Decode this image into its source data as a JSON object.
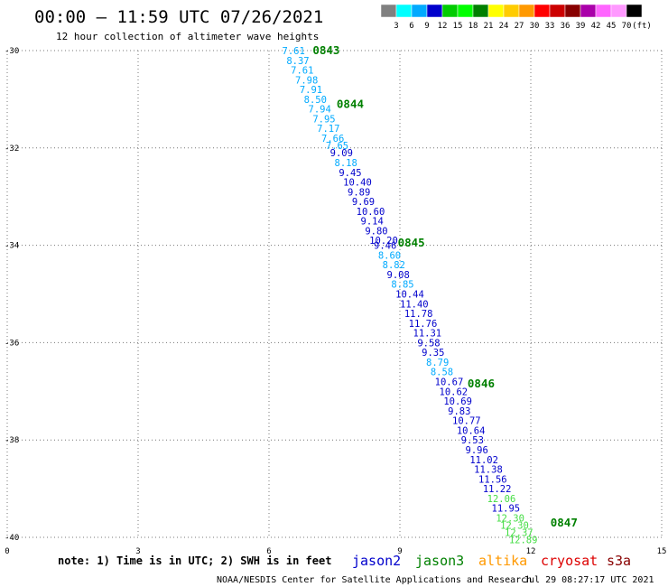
{
  "chart_data": {
    "type": "scatter",
    "title": "00:00 – 11:59 UTC 07/26/2021",
    "subtitle": "12 hour collection of altimeter wave heights",
    "xlim": [
      0,
      15
    ],
    "ylim": [
      -40,
      -30
    ],
    "x_ticks": [
      "0",
      "3",
      "6",
      "9",
      "12",
      "15"
    ],
    "y_ticks": [
      "-30",
      "-32",
      "-34",
      "-36",
      "-38",
      "-40"
    ],
    "grid": true,
    "colorbar": {
      "labels": [
        "3",
        "6",
        "9",
        "12",
        "15",
        "18",
        "21",
        "24",
        "27",
        "30",
        "33",
        "36",
        "39",
        "42",
        "45",
        "70",
        "(ft)"
      ],
      "colors": [
        "#808080",
        "#00ffff",
        "#00aaff",
        "#0000cc",
        "#00cc00",
        "#00ff00",
        "#008000",
        "#ffff00",
        "#ffcc00",
        "#ff9900",
        "#ff0000",
        "#cc0000",
        "#880000",
        "#aa00aa",
        "#ff66ff",
        "#ff99ff",
        "#000000"
      ]
    },
    "points": [
      {
        "x": 6.3,
        "y": -30.0,
        "label": "7.61",
        "color": "#00aaff"
      },
      {
        "x": 6.4,
        "y": -30.2,
        "label": "8.37",
        "color": "#00aaff"
      },
      {
        "x": 6.5,
        "y": -30.4,
        "label": "7.61",
        "color": "#00aaff"
      },
      {
        "x": 6.6,
        "y": -30.6,
        "label": "7.98",
        "color": "#00aaff"
      },
      {
        "x": 6.7,
        "y": -30.8,
        "label": "7.91",
        "color": "#00aaff"
      },
      {
        "x": 6.8,
        "y": -31.0,
        "label": "8.50",
        "color": "#00aaff"
      },
      {
        "x": 6.9,
        "y": -31.2,
        "label": "7.94",
        "color": "#00aaff"
      },
      {
        "x": 7.0,
        "y": -31.4,
        "label": "7.95",
        "color": "#00aaff"
      },
      {
        "x": 7.1,
        "y": -31.6,
        "label": "7.17",
        "color": "#00aaff"
      },
      {
        "x": 7.2,
        "y": -31.8,
        "label": "7.66",
        "color": "#00aaff"
      },
      {
        "x": 7.3,
        "y": -31.95,
        "label": "7.65",
        "color": "#00aaff"
      },
      {
        "x": 7.4,
        "y": -32.1,
        "label": "9.09",
        "color": "#0000cc"
      },
      {
        "x": 7.5,
        "y": -32.3,
        "label": "8.18",
        "color": "#00aaff"
      },
      {
        "x": 7.6,
        "y": -32.5,
        "label": "9.45",
        "color": "#0000cc"
      },
      {
        "x": 7.7,
        "y": -32.7,
        "label": "10.40",
        "color": "#0000cc"
      },
      {
        "x": 7.8,
        "y": -32.9,
        "label": "9.89",
        "color": "#0000cc"
      },
      {
        "x": 7.9,
        "y": -33.1,
        "label": "9.69",
        "color": "#0000cc"
      },
      {
        "x": 8.0,
        "y": -33.3,
        "label": "10.60",
        "color": "#0000cc"
      },
      {
        "x": 8.1,
        "y": -33.5,
        "label": "9.14",
        "color": "#0000cc"
      },
      {
        "x": 8.2,
        "y": -33.7,
        "label": "9.80",
        "color": "#0000cc"
      },
      {
        "x": 8.3,
        "y": -33.9,
        "label": "10.20",
        "color": "#0000cc"
      },
      {
        "x": 8.4,
        "y": -34.0,
        "label": "9.46",
        "color": "#0000cc"
      },
      {
        "x": 8.5,
        "y": -34.2,
        "label": "8.60",
        "color": "#00aaff"
      },
      {
        "x": 8.6,
        "y": -34.4,
        "label": "8.82",
        "color": "#00aaff"
      },
      {
        "x": 8.7,
        "y": -34.6,
        "label": "9.08",
        "color": "#0000cc"
      },
      {
        "x": 8.8,
        "y": -34.8,
        "label": "8.85",
        "color": "#00aaff"
      },
      {
        "x": 8.9,
        "y": -35.0,
        "label": "10.44",
        "color": "#0000cc"
      },
      {
        "x": 9.0,
        "y": -35.2,
        "label": "11.40",
        "color": "#0000cc"
      },
      {
        "x": 9.1,
        "y": -35.4,
        "label": "11.78",
        "color": "#0000cc"
      },
      {
        "x": 9.2,
        "y": -35.6,
        "label": "11.76",
        "color": "#0000cc"
      },
      {
        "x": 9.3,
        "y": -35.8,
        "label": "11.31",
        "color": "#0000cc"
      },
      {
        "x": 9.4,
        "y": -36.0,
        "label": "9.58",
        "color": "#0000cc"
      },
      {
        "x": 9.5,
        "y": -36.2,
        "label": "9.35",
        "color": "#0000cc"
      },
      {
        "x": 9.6,
        "y": -36.4,
        "label": "8.79",
        "color": "#00aaff"
      },
      {
        "x": 9.7,
        "y": -36.6,
        "label": "8.58",
        "color": "#00aaff"
      },
      {
        "x": 9.8,
        "y": -36.8,
        "label": "10.67",
        "color": "#0000cc"
      },
      {
        "x": 9.9,
        "y": -37.0,
        "label": "10.62",
        "color": "#0000cc"
      },
      {
        "x": 10.0,
        "y": -37.2,
        "label": "10.69",
        "color": "#0000cc"
      },
      {
        "x": 10.1,
        "y": -37.4,
        "label": "9.83",
        "color": "#0000cc"
      },
      {
        "x": 10.2,
        "y": -37.6,
        "label": "10.77",
        "color": "#0000cc"
      },
      {
        "x": 10.3,
        "y": -37.8,
        "label": "10.64",
        "color": "#0000cc"
      },
      {
        "x": 10.4,
        "y": -38.0,
        "label": "9.53",
        "color": "#0000cc"
      },
      {
        "x": 10.5,
        "y": -38.2,
        "label": "9.96",
        "color": "#0000cc"
      },
      {
        "x": 10.6,
        "y": -38.4,
        "label": "11.02",
        "color": "#0000cc"
      },
      {
        "x": 10.7,
        "y": -38.6,
        "label": "11.38",
        "color": "#0000cc"
      },
      {
        "x": 10.8,
        "y": -38.8,
        "label": "11.56",
        "color": "#0000cc"
      },
      {
        "x": 10.9,
        "y": -39.0,
        "label": "11.22",
        "color": "#0000cc"
      },
      {
        "x": 11.0,
        "y": -39.2,
        "label": "12.06",
        "color": "#44dd44"
      },
      {
        "x": 11.1,
        "y": -39.4,
        "label": "11.95",
        "color": "#0000cc"
      },
      {
        "x": 11.2,
        "y": -39.6,
        "label": "12.30",
        "color": "#44dd44"
      },
      {
        "x": 11.3,
        "y": -39.75,
        "label": "12.30",
        "color": "#44dd44"
      },
      {
        "x": 11.4,
        "y": -39.9,
        "label": "12.37",
        "color": "#44dd44"
      },
      {
        "x": 11.5,
        "y": -40.05,
        "label": "12.89",
        "color": "#44dd44"
      }
    ],
    "annotations": [
      {
        "text": "0843",
        "x": 7.0,
        "y": -30.0
      },
      {
        "text": "0844",
        "x": 7.55,
        "y": -31.1
      },
      {
        "text": "0845",
        "x": 8.95,
        "y": -33.95
      },
      {
        "text": "0846",
        "x": 10.55,
        "y": -36.85
      },
      {
        "text": "0847",
        "x": 12.45,
        "y": -39.7
      }
    ]
  },
  "note": "note: 1) Time is in UTC; 2) SWH is in feet",
  "satellites": [
    {
      "name": "jason2",
      "color": "#0000cc"
    },
    {
      "name": "jason3",
      "color": "#008000"
    },
    {
      "name": "altika",
      "color": "#ff9900"
    },
    {
      "name": "cryosat",
      "color": "#dd0000"
    },
    {
      "name": "s3a",
      "color": "#880000"
    }
  ],
  "credit": "NOAA/NESDIS Center for Satellite Applications and Research",
  "timestamp": "Jul 29 08:27:17 UTC 2021"
}
